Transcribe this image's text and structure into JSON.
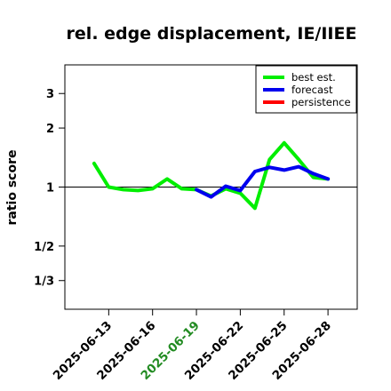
{
  "chart_data": {
    "type": "line",
    "title": "rel. edge displacement, IE/IIEE",
    "ylabel": "ratio score",
    "xlabel": "",
    "y_scale": "log",
    "ylim": [
      0.238,
      4.2
    ],
    "xlim": [
      "2025-06-10",
      "2025-06-30"
    ],
    "y_ticks": [
      {
        "value": 0.3333,
        "label": "1/3"
      },
      {
        "value": 0.5,
        "label": "1/2"
      },
      {
        "value": 1,
        "label": "1"
      },
      {
        "value": 2,
        "label": "2"
      },
      {
        "value": 3,
        "label": "3"
      }
    ],
    "x_ticks": [
      {
        "date": "2025-06-13",
        "label": "2025-06-13",
        "color": "#000000"
      },
      {
        "date": "2025-06-16",
        "label": "2025-06-16",
        "color": "#000000"
      },
      {
        "date": "2025-06-19",
        "label": "2025-06-19",
        "color": "#228B22"
      },
      {
        "date": "2025-06-22",
        "label": "2025-06-22",
        "color": "#000000"
      },
      {
        "date": "2025-06-25",
        "label": "2025-06-25",
        "color": "#000000"
      },
      {
        "date": "2025-06-28",
        "label": "2025-06-28",
        "color": "#000000"
      }
    ],
    "reference_line": 1,
    "grid": false,
    "legend_position": "top-right",
    "series": [
      {
        "name": "best est.",
        "color": "#00EE00",
        "points": [
          {
            "x": "2025-06-12",
            "y": 1.32
          },
          {
            "x": "2025-06-13",
            "y": 1.0
          },
          {
            "x": "2025-06-14",
            "y": 0.97
          },
          {
            "x": "2025-06-15",
            "y": 0.96
          },
          {
            "x": "2025-06-16",
            "y": 0.98
          },
          {
            "x": "2025-06-17",
            "y": 1.1
          },
          {
            "x": "2025-06-18",
            "y": 0.98
          },
          {
            "x": "2025-06-19",
            "y": 0.97
          },
          {
            "x": "2025-06-20",
            "y": 0.9
          },
          {
            "x": "2025-06-21",
            "y": 0.98
          },
          {
            "x": "2025-06-22",
            "y": 0.93
          },
          {
            "x": "2025-06-23",
            "y": 0.78
          },
          {
            "x": "2025-06-24",
            "y": 1.38
          },
          {
            "x": "2025-06-25",
            "y": 1.68
          },
          {
            "x": "2025-06-26",
            "y": 1.38
          },
          {
            "x": "2025-06-27",
            "y": 1.12
          },
          {
            "x": "2025-06-28",
            "y": 1.1
          }
        ]
      },
      {
        "name": "forecast",
        "color": "#0000EE",
        "points": [
          {
            "x": "2025-06-19",
            "y": 0.97
          },
          {
            "x": "2025-06-20",
            "y": 0.89
          },
          {
            "x": "2025-06-21",
            "y": 1.01
          },
          {
            "x": "2025-06-22",
            "y": 0.96
          },
          {
            "x": "2025-06-23",
            "y": 1.2
          },
          {
            "x": "2025-06-24",
            "y": 1.26
          },
          {
            "x": "2025-06-25",
            "y": 1.22
          },
          {
            "x": "2025-06-26",
            "y": 1.27
          },
          {
            "x": "2025-06-27",
            "y": 1.17
          },
          {
            "x": "2025-06-28",
            "y": 1.1
          }
        ]
      },
      {
        "name": "persistence",
        "color": "#FF0000",
        "points": []
      }
    ]
  }
}
